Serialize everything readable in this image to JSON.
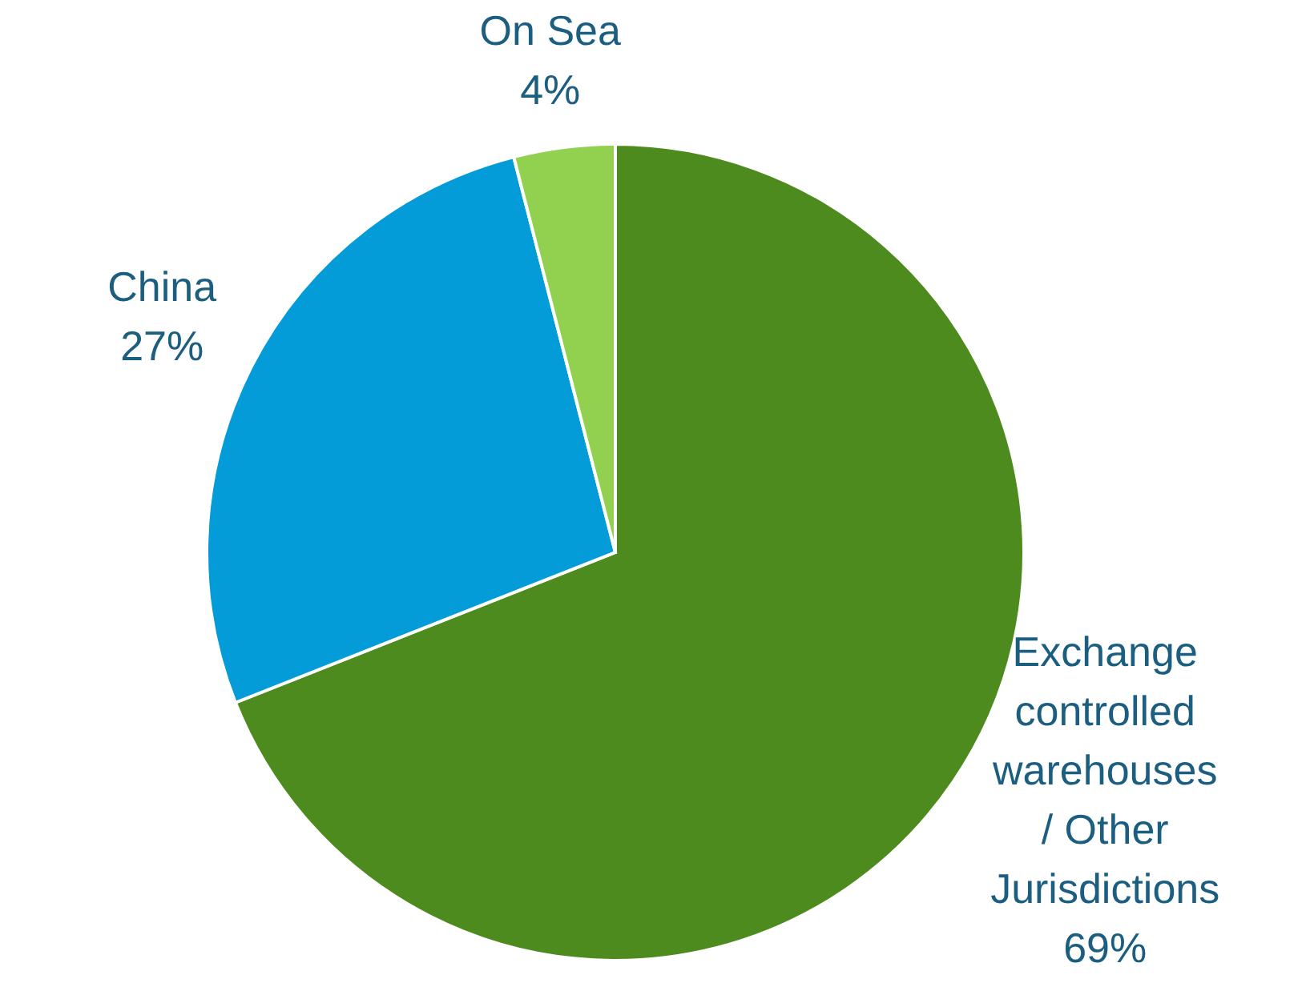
{
  "chart_data": {
    "type": "pie",
    "categories": [
      "Exchange controlled warehouses / Other Jurisdictions",
      "China",
      "On Sea"
    ],
    "values": [
      69,
      27,
      4
    ],
    "colors": [
      "#4e8b1f",
      "#039cd8",
      "#92d050"
    ],
    "value_labels": [
      "69%",
      "27%",
      "4%"
    ]
  }
}
